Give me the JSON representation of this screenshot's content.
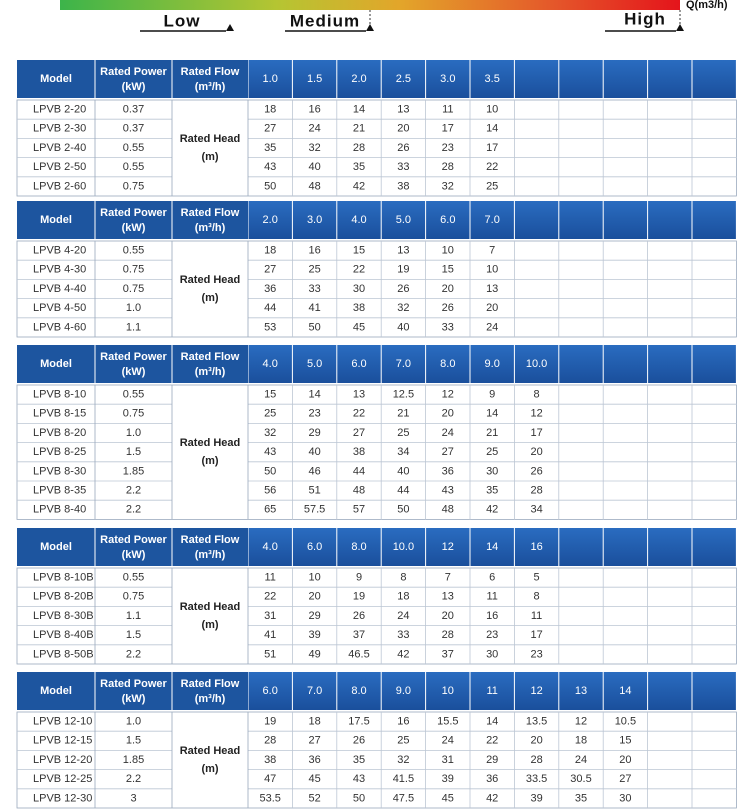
{
  "scale": {
    "low": "Low",
    "medium": "Medium",
    "high": "High",
    "unit": "Q(m3/h)"
  },
  "tables": [
    {
      "header": {
        "model": "Model",
        "power": [
          "Rated Power",
          "(kW)"
        ],
        "flow": [
          "Rated Flow",
          "(m³/h)"
        ]
      },
      "head": [
        "Rated Head",
        "(m)"
      ],
      "flows": [
        "1.0",
        "1.5",
        "2.0",
        "2.5",
        "3.0",
        "3.5"
      ],
      "rows": [
        {
          "model": "LPVB 2-20",
          "power": "0.37",
          "heads": [
            18,
            16,
            14,
            13,
            11,
            10
          ]
        },
        {
          "model": "LPVB 2-30",
          "power": "0.37",
          "heads": [
            27,
            24,
            21,
            20,
            17,
            14
          ]
        },
        {
          "model": "LPVB 2-40",
          "power": "0.55",
          "heads": [
            35,
            32,
            28,
            26,
            23,
            17
          ]
        },
        {
          "model": "LPVB 2-50",
          "power": "0.55",
          "heads": [
            43,
            40,
            35,
            33,
            28,
            22
          ]
        },
        {
          "model": "LPVB 2-60",
          "power": "0.75",
          "heads": [
            50,
            48,
            42,
            38,
            32,
            25
          ]
        }
      ]
    },
    {
      "header": {
        "model": "Model",
        "power": [
          "Rated Power",
          "(kW)"
        ],
        "flow": [
          "Rated Flow",
          "(m³/h)"
        ]
      },
      "head": [
        "Rated Head",
        "(m)"
      ],
      "flows": [
        "2.0",
        "3.0",
        "4.0",
        "5.0",
        "6.0",
        "7.0"
      ],
      "rows": [
        {
          "model": "LPVB 4-20",
          "power": "0.55",
          "heads": [
            18,
            16,
            15,
            13,
            10,
            7
          ]
        },
        {
          "model": "LPVB 4-30",
          "power": "0.75",
          "heads": [
            27,
            25,
            22,
            19,
            15,
            10
          ]
        },
        {
          "model": "LPVB 4-40",
          "power": "0.75",
          "heads": [
            36,
            33,
            30,
            26,
            20,
            13
          ]
        },
        {
          "model": "LPVB 4-50",
          "power": "1.0",
          "heads": [
            44,
            41,
            38,
            32,
            26,
            20
          ]
        },
        {
          "model": "LPVB 4-60",
          "power": "1.1",
          "heads": [
            53,
            50,
            45,
            40,
            33,
            24
          ]
        }
      ]
    },
    {
      "header": {
        "model": "Model",
        "power": [
          "Rated Power",
          "(kW)"
        ],
        "flow": [
          "Rated Flow",
          "(m³/h)"
        ]
      },
      "head": [
        "Rated Head",
        "(m)"
      ],
      "flows": [
        "4.0",
        "5.0",
        "6.0",
        "7.0",
        "8.0",
        "9.0",
        "10.0"
      ],
      "rows": [
        {
          "model": "LPVB 8-10",
          "power": "0.55",
          "heads": [
            15,
            14,
            13,
            12.5,
            12,
            9,
            8
          ]
        },
        {
          "model": "LPVB 8-15",
          "power": "0.75",
          "heads": [
            25,
            23,
            22,
            21,
            20,
            14,
            12
          ]
        },
        {
          "model": "LPVB 8-20",
          "power": "1.0",
          "heads": [
            32,
            29,
            27,
            25,
            24,
            21,
            17
          ]
        },
        {
          "model": "LPVB 8-25",
          "power": "1.5",
          "heads": [
            43,
            40,
            38,
            34,
            27,
            25,
            20
          ]
        },
        {
          "model": "LPVB 8-30",
          "power": "1.85",
          "heads": [
            50,
            46,
            44,
            40,
            36,
            30,
            26
          ]
        },
        {
          "model": "LPVB 8-35",
          "power": "2.2",
          "heads": [
            56,
            51,
            48,
            44,
            43,
            35,
            28
          ]
        },
        {
          "model": "LPVB 8-40",
          "power": "2.2",
          "heads": [
            65,
            57.5,
            57,
            50,
            48,
            42,
            34
          ]
        }
      ]
    },
    {
      "header": {
        "model": "Model",
        "power": [
          "Rated Power",
          "(kW)"
        ],
        "flow": [
          "Rated Flow",
          "(m³/h)"
        ]
      },
      "head": [
        "Rated Head",
        "(m)"
      ],
      "flows": [
        "4.0",
        "6.0",
        "8.0",
        "10.0",
        "12",
        "14",
        "16"
      ],
      "rows": [
        {
          "model": "LPVB 8-10B",
          "power": "0.55",
          "heads": [
            11,
            10,
            9,
            8,
            7,
            6,
            5
          ]
        },
        {
          "model": "LPVB 8-20B",
          "power": "0.75",
          "heads": [
            22,
            20,
            19,
            18,
            13,
            11,
            8
          ]
        },
        {
          "model": "LPVB 8-30B",
          "power": "1.1",
          "heads": [
            31,
            29,
            26,
            24,
            20,
            16,
            11
          ]
        },
        {
          "model": "LPVB 8-40B",
          "power": "1.5",
          "heads": [
            41,
            39,
            37,
            33,
            28,
            23,
            17
          ]
        },
        {
          "model": "LPVB 8-50B",
          "power": "2.2",
          "heads": [
            51,
            49,
            46.5,
            42,
            37,
            30,
            23
          ]
        }
      ]
    },
    {
      "header": {
        "model": "Model",
        "power": [
          "Rated Power",
          "(kW)"
        ],
        "flow": [
          "Rated Flow",
          "(m³/h)"
        ]
      },
      "head": [
        "Rated Head",
        "(m)"
      ],
      "flows": [
        "6.0",
        "7.0",
        "8.0",
        "9.0",
        "10",
        "11",
        "12",
        "13",
        "14"
      ],
      "rows": [
        {
          "model": "LPVB 12-10",
          "power": "1.0",
          "heads": [
            19,
            18,
            17.5,
            16,
            15.5,
            14,
            13.5,
            12,
            10.5
          ]
        },
        {
          "model": "LPVB 12-15",
          "power": "1.5",
          "heads": [
            28,
            27,
            26,
            25,
            24,
            22,
            20,
            18,
            15
          ]
        },
        {
          "model": "LPVB 12-20",
          "power": "1.85",
          "heads": [
            38,
            36,
            35,
            32,
            31,
            29,
            28,
            24,
            20
          ]
        },
        {
          "model": "LPVB 12-25",
          "power": "2.2",
          "heads": [
            47,
            45,
            43,
            41.5,
            39,
            36,
            33.5,
            30.5,
            27
          ]
        },
        {
          "model": "LPVB 12-30",
          "power": "3",
          "heads": [
            53.5,
            52,
            50,
            47.5,
            45,
            42,
            39,
            35,
            30
          ]
        }
      ]
    }
  ]
}
